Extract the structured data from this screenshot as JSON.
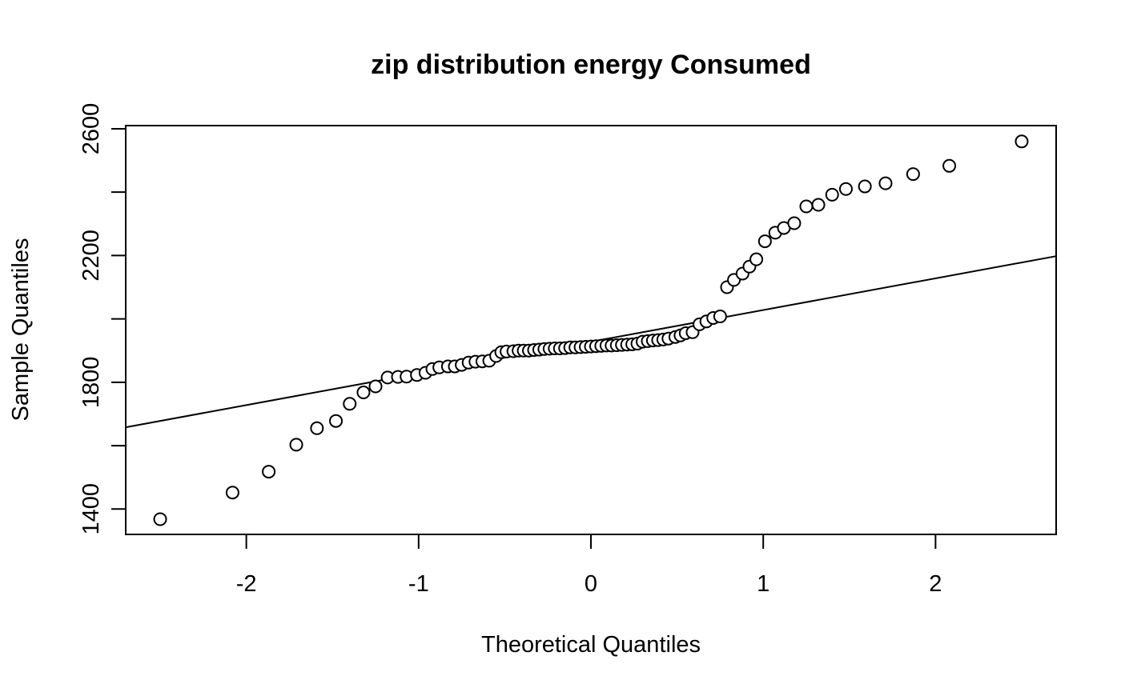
{
  "chart_data": {
    "type": "scatter",
    "title": "zip distribution energy Consumed",
    "xlabel": "Theoretical Quantiles",
    "ylabel": "Sample Quantiles",
    "xlim": [
      -2.7,
      2.7
    ],
    "ylim": [
      1320,
      2610
    ],
    "x_ticks": [
      -2,
      -1,
      0,
      1,
      2
    ],
    "x_tick_labels": [
      "-2",
      "-1",
      "0",
      "1",
      "2"
    ],
    "y_ticks": [
      1400,
      1600,
      1800,
      2000,
      2200,
      2400,
      2600
    ],
    "y_tick_labels": [
      "1400",
      "",
      "1800",
      "",
      "2200",
      "",
      "2600"
    ],
    "grid": false,
    "reference_line": {
      "x": [
        -2.7,
        2.7
      ],
      "y": [
        1658,
        2198
      ]
    },
    "points": [
      [
        -2.5,
        1368
      ],
      [
        -2.08,
        1452
      ],
      [
        -1.87,
        1518
      ],
      [
        -1.71,
        1603
      ],
      [
        -1.59,
        1655
      ],
      [
        -1.48,
        1678
      ],
      [
        -1.4,
        1732
      ],
      [
        -1.32,
        1768
      ],
      [
        -1.25,
        1787
      ],
      [
        -1.18,
        1815
      ],
      [
        -1.12,
        1817
      ],
      [
        -1.07,
        1818
      ],
      [
        -1.01,
        1823
      ],
      [
        -0.96,
        1830
      ],
      [
        -0.92,
        1842
      ],
      [
        -0.88,
        1847
      ],
      [
        -0.83,
        1850
      ],
      [
        -0.79,
        1850
      ],
      [
        -0.75,
        1855
      ],
      [
        -0.71,
        1862
      ],
      [
        -0.67,
        1865
      ],
      [
        -0.63,
        1866
      ],
      [
        -0.59,
        1868
      ],
      [
        -0.55,
        1883
      ],
      [
        -0.52,
        1895
      ],
      [
        -0.49,
        1897
      ],
      [
        -0.45,
        1898
      ],
      [
        -0.42,
        1900
      ],
      [
        -0.39,
        1900
      ],
      [
        -0.36,
        1900
      ],
      [
        -0.33,
        1902
      ],
      [
        -0.3,
        1903
      ],
      [
        -0.27,
        1905
      ],
      [
        -0.24,
        1906
      ],
      [
        -0.21,
        1907
      ],
      [
        -0.18,
        1907
      ],
      [
        -0.15,
        1908
      ],
      [
        -0.12,
        1910
      ],
      [
        -0.09,
        1910
      ],
      [
        -0.06,
        1911
      ],
      [
        -0.03,
        1912
      ],
      [
        0.0,
        1913
      ],
      [
        0.03,
        1914
      ],
      [
        0.06,
        1915
      ],
      [
        0.09,
        1916
      ],
      [
        0.12,
        1916
      ],
      [
        0.15,
        1917
      ],
      [
        0.18,
        1918
      ],
      [
        0.21,
        1919
      ],
      [
        0.24,
        1920
      ],
      [
        0.27,
        1922
      ],
      [
        0.3,
        1928
      ],
      [
        0.33,
        1930
      ],
      [
        0.36,
        1932
      ],
      [
        0.39,
        1933
      ],
      [
        0.42,
        1935
      ],
      [
        0.45,
        1938
      ],
      [
        0.49,
        1943
      ],
      [
        0.52,
        1948
      ],
      [
        0.55,
        1955
      ],
      [
        0.59,
        1958
      ],
      [
        0.63,
        1983
      ],
      [
        0.67,
        1992
      ],
      [
        0.71,
        2003
      ],
      [
        0.75,
        2008
      ],
      [
        0.79,
        2100
      ],
      [
        0.83,
        2123
      ],
      [
        0.88,
        2143
      ],
      [
        0.92,
        2165
      ],
      [
        0.96,
        2188
      ],
      [
        1.01,
        2245
      ],
      [
        1.07,
        2272
      ],
      [
        1.12,
        2287
      ],
      [
        1.18,
        2302
      ],
      [
        1.25,
        2355
      ],
      [
        1.32,
        2360
      ],
      [
        1.4,
        2392
      ],
      [
        1.48,
        2410
      ],
      [
        1.59,
        2418
      ],
      [
        1.71,
        2428
      ],
      [
        1.87,
        2457
      ],
      [
        2.08,
        2483
      ],
      [
        2.5,
        2560
      ]
    ]
  }
}
